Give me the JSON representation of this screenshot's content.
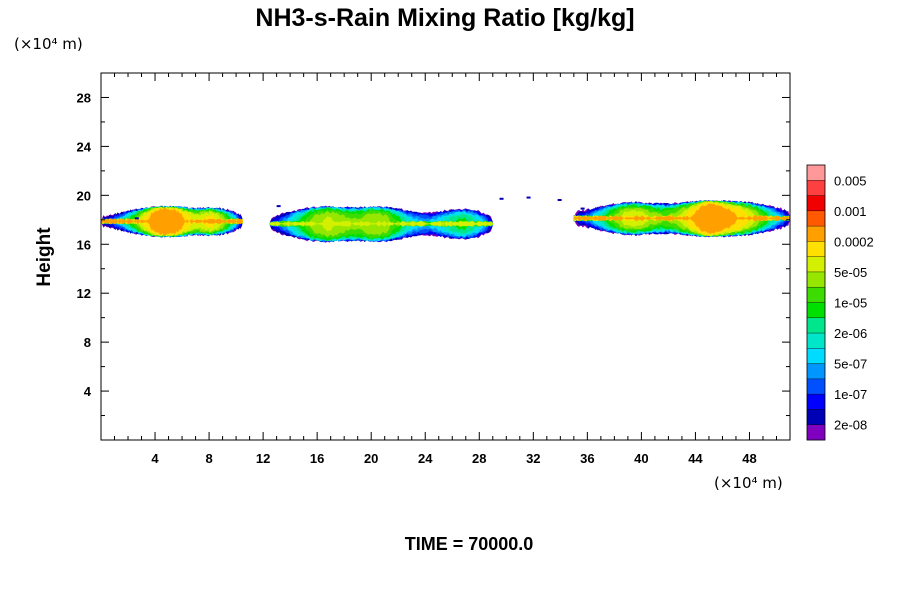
{
  "chart_data": {
    "type": "heatmap",
    "title": "NH3-s-Rain Mixing Ratio [kg/kg]",
    "xlabel": "",
    "ylabel": "Height",
    "x_unit": "(×10⁴ m)",
    "y_unit": "(×10⁴ m)",
    "xlim": [
      0,
      51
    ],
    "ylim": [
      0,
      30
    ],
    "x_ticks": [
      "4",
      "8",
      "12",
      "16",
      "20",
      "24",
      "28",
      "32",
      "36",
      "40",
      "44",
      "48"
    ],
    "x_tick_values": [
      4,
      8,
      12,
      16,
      20,
      24,
      28,
      32,
      36,
      40,
      44,
      48
    ],
    "y_ticks": [
      "4",
      "8",
      "12",
      "16",
      "20",
      "24",
      "28"
    ],
    "y_tick_values": [
      4,
      8,
      12,
      16,
      20,
      24,
      28
    ],
    "footer": "TIME = 70000.0",
    "colorbar": {
      "labels": [
        "0.005",
        "0.001",
        "0.0002",
        "5e-05",
        "1e-05",
        "2e-06",
        "5e-07",
        "1e-07",
        "2e-08"
      ],
      "colors_top_to_bottom": [
        "#ff9999",
        "#ff4040",
        "#f00000",
        "#ff5a00",
        "#ffa000",
        "#ffe000",
        "#d2f000",
        "#96e600",
        "#3cdc00",
        "#00e000",
        "#00e68c",
        "#00e6c8",
        "#00dcff",
        "#0096ff",
        "#0050ff",
        "#0000ff",
        "#0000b4",
        "#8000c0"
      ]
    },
    "regions": [
      {
        "x_start": 0,
        "x_end": 10.5,
        "base": 16.8,
        "top": 18.9,
        "peak": "0.0002"
      },
      {
        "x_start": 12.5,
        "x_end": 29,
        "base": 16.3,
        "top": 19.0,
        "peak": "5e-05"
      },
      {
        "x_start": 35,
        "x_end": 51,
        "base": 16.8,
        "top": 19.4,
        "peak": "0.0002"
      }
    ]
  }
}
